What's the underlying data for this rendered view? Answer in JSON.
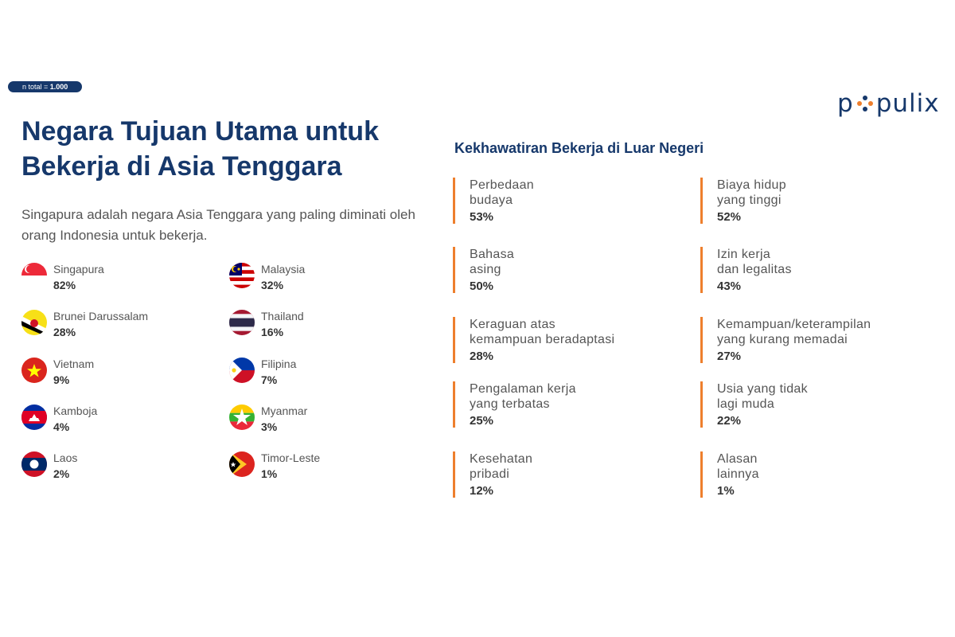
{
  "badge": {
    "prefix": "n total = ",
    "value": "1.000"
  },
  "logo": {
    "pre": "p",
    "post": "pulix",
    "dot_colors": [
      "#16386b",
      "#ee7f2d",
      "#16386b",
      "#ee7f2d"
    ]
  },
  "title": "Negara Tujuan Utama untuk Bekerja di Asia Tenggara",
  "subtitle": "Singapura adalah negara Asia Tenggara yang paling diminati oleh orang Indonesia untuk bekerja.",
  "countries": [
    {
      "name": "Singapura",
      "value": "82%",
      "flag": "singapore-flag-icon"
    },
    {
      "name": "Malaysia",
      "value": "32%",
      "flag": "malaysia-flag-icon"
    },
    {
      "name": "Brunei Darussalam",
      "value": "28%",
      "flag": "brunei-flag-icon"
    },
    {
      "name": "Thailand",
      "value": "16%",
      "flag": "thailand-flag-icon"
    },
    {
      "name": "Vietnam",
      "value": "9%",
      "flag": "vietnam-flag-icon"
    },
    {
      "name": "Filipina",
      "value": "7%",
      "flag": "philippines-flag-icon"
    },
    {
      "name": "Kamboja",
      "value": "4%",
      "flag": "cambodia-flag-icon"
    },
    {
      "name": "Myanmar",
      "value": "3%",
      "flag": "myanmar-flag-icon"
    },
    {
      "name": "Laos",
      "value": "2%",
      "flag": "laos-flag-icon"
    },
    {
      "name": "Timor-Leste",
      "value": "1%",
      "flag": "timor-leste-flag-icon"
    }
  ],
  "concerns_title": "Kekhawatiran Bekerja di Luar Negeri",
  "concerns": [
    {
      "text": "Perbedaan\nbudaya",
      "value": "53%"
    },
    {
      "text": "Biaya hidup\nyang tinggi",
      "value": "52%"
    },
    {
      "text": "Bahasa\nasing",
      "value": "50%"
    },
    {
      "text": "Izin kerja\ndan legalitas",
      "value": "43%"
    },
    {
      "text": "Keraguan atas\nkemampuan beradaptasi",
      "value": "28%"
    },
    {
      "text": "Kemampuan/keterampilan\nyang kurang memadai",
      "value": "27%"
    },
    {
      "text": "Pengalaman kerja\nyang terbatas",
      "value": "25%"
    },
    {
      "text": "Usia yang tidak\nlagi muda",
      "value": "22%"
    },
    {
      "text": "Kesehatan\npribadi",
      "value": "12%"
    },
    {
      "text": "Alasan\nlainnya",
      "value": "1%"
    }
  ],
  "colors": {
    "navy": "#16386b",
    "orange": "#ee7f2d"
  }
}
